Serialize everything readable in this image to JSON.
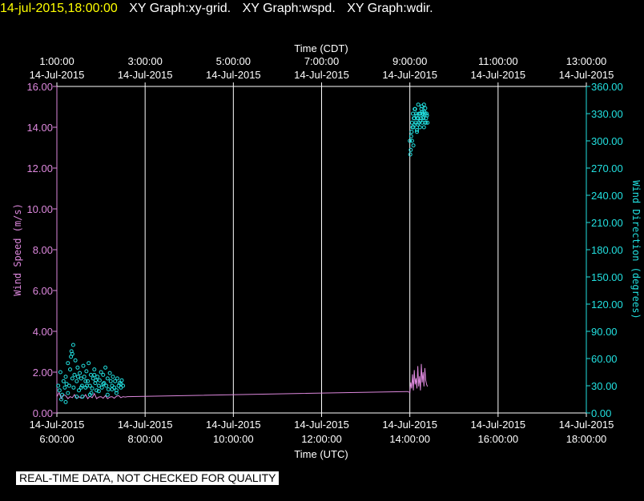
{
  "header": {
    "timestamp": "14-jul-2015,18:00:00",
    "graphs": [
      "XY Graph:xy-grid.",
      "XY Graph:wspd.",
      "XY Graph:wdir."
    ]
  },
  "footer": {
    "notice": "REAL-TIME DATA, NOT CHECKED FOR QUALITY"
  },
  "colors": {
    "wspd": "#dd88dd",
    "wdir": "#22e0e0",
    "grid": "#ffffff",
    "background": "#000000"
  },
  "chart_data": {
    "type": "scatter",
    "x_top_label": "Time (CDT)",
    "x_bottom_label": "Time (UTC)",
    "top_ticks": [
      {
        "time": "1:00:00",
        "date": "14-Jul-2015"
      },
      {
        "time": "3:00:00",
        "date": "14-Jul-2015"
      },
      {
        "time": "5:00:00",
        "date": "14-Jul-2015"
      },
      {
        "time": "7:00:00",
        "date": "14-Jul-2015"
      },
      {
        "time": "9:00:00",
        "date": "14-Jul-2015"
      },
      {
        "time": "11:00:00",
        "date": "14-Jul-2015"
      },
      {
        "time": "13:00:00",
        "date": "14-Jul-2015"
      }
    ],
    "bottom_ticks": [
      {
        "time": "6:00:00",
        "date": "14-Jul-2015"
      },
      {
        "time": "8:00:00",
        "date": "14-Jul-2015"
      },
      {
        "time": "10:00:00",
        "date": "14-Jul-2015"
      },
      {
        "time": "12:00:00",
        "date": "14-Jul-2015"
      },
      {
        "time": "14:00:00",
        "date": "14-Jul-2015"
      },
      {
        "time": "16:00:00",
        "date": "14-Jul-2015"
      },
      {
        "time": "18:00:00",
        "date": "14-Jul-2015"
      }
    ],
    "xlim_utc_hours": [
      6,
      18
    ],
    "left_axis": {
      "label": "Wind Speed (m/s)",
      "ylim": [
        0,
        16
      ],
      "ticks": [
        "0.00",
        "2.00",
        "4.00",
        "6.00",
        "8.00",
        "10.00",
        "12.00",
        "14.00",
        "16.00"
      ]
    },
    "right_axis": {
      "label": "Wind Direction (degrees)",
      "ylim": [
        0,
        360
      ],
      "ticks": [
        "0.00",
        "30.00",
        "60.00",
        "90.00",
        "120.00",
        "150.00",
        "180.00",
        "210.00",
        "240.00",
        "270.00",
        "300.00",
        "330.00",
        "360.00"
      ]
    },
    "grid": true,
    "series": [
      {
        "name": "Wind Speed (m/s)",
        "style": "line",
        "x_utc_hours": [
          6.0,
          6.05,
          6.1,
          6.15,
          6.2,
          6.25,
          6.3,
          6.35,
          6.4,
          6.45,
          6.5,
          6.55,
          6.6,
          6.65,
          6.7,
          6.75,
          6.8,
          6.85,
          6.9,
          6.95,
          7.0,
          7.05,
          7.1,
          7.15,
          7.2,
          7.25,
          7.3,
          7.35,
          7.4,
          7.45,
          7.5,
          7.55,
          7.6,
          13.95,
          14.0,
          14.02,
          14.04,
          14.06,
          14.08,
          14.1,
          14.12,
          14.14,
          14.16,
          14.18,
          14.2,
          14.22,
          14.24,
          14.26,
          14.28,
          14.3,
          14.32,
          14.34,
          14.36,
          14.38,
          14.4
        ],
        "values": [
          0.8,
          1.0,
          0.7,
          0.9,
          0.85,
          0.7,
          0.8,
          0.75,
          0.9,
          0.7,
          0.8,
          0.72,
          0.75,
          0.9,
          0.7,
          0.82,
          0.75,
          0.95,
          0.7,
          0.78,
          0.8,
          0.72,
          0.85,
          0.7,
          0.78,
          0.8,
          0.72,
          0.82,
          0.85,
          0.75,
          0.8,
          0.78,
          0.8,
          1.05,
          1.0,
          1.5,
          1.2,
          1.9,
          1.1,
          2.1,
          1.4,
          1.7,
          1.2,
          2.3,
          1.3,
          1.8,
          1.1,
          2.4,
          1.5,
          2.0,
          1.3,
          2.2,
          1.6,
          1.4,
          1.3
        ]
      },
      {
        "name": "Wind Direction (degrees)",
        "style": "scatter",
        "x_utc_hours": [
          6.03,
          6.06,
          6.08,
          6.12,
          6.15,
          6.18,
          6.2,
          6.22,
          6.25,
          6.28,
          6.3,
          6.32,
          6.35,
          6.37,
          6.4,
          6.42,
          6.45,
          6.47,
          6.5,
          6.52,
          6.55,
          6.57,
          6.6,
          6.62,
          6.65,
          6.67,
          6.7,
          6.72,
          6.75,
          6.77,
          6.8,
          6.82,
          6.85,
          6.87,
          6.9,
          6.92,
          6.95,
          6.97,
          7.0,
          7.02,
          7.05,
          7.07,
          7.1,
          7.12,
          7.15,
          7.17,
          7.2,
          7.22,
          7.25,
          7.27,
          7.3,
          7.32,
          7.35,
          7.37,
          7.4,
          7.42,
          7.45,
          7.47,
          7.5,
          6.1,
          6.25,
          6.35,
          6.45,
          6.55,
          6.65,
          6.75,
          6.85,
          6.95,
          7.05,
          7.15,
          7.25,
          7.35,
          7.45,
          6.2,
          6.33,
          6.38,
          6.48,
          6.58,
          6.68,
          6.78,
          6.88,
          14.0,
          14.02,
          14.04,
          14.05,
          14.07,
          14.08,
          14.1,
          14.11,
          14.13,
          14.14,
          14.16,
          14.17,
          14.19,
          14.2,
          14.22,
          14.23,
          14.25,
          14.26,
          14.28,
          14.29,
          14.31,
          14.32,
          14.34,
          14.35,
          14.37,
          14.38,
          14.4,
          14.03,
          14.06,
          14.09,
          14.12,
          14.15,
          14.18,
          14.21,
          14.24,
          14.27,
          14.3,
          14.33,
          14.36,
          14.39,
          14.08,
          14.16,
          14.24,
          14.32,
          14.01,
          14.05,
          14.11,
          14.19,
          14.28,
          14.35
        ],
        "values": [
          30,
          25,
          45,
          20,
          35,
          28,
          40,
          32,
          55,
          30,
          48,
          62,
          38,
          75,
          42,
          58,
          35,
          50,
          25,
          44,
          38,
          30,
          52,
          40,
          28,
          46,
          35,
          55,
          30,
          42,
          27,
          38,
          48,
          33,
          25,
          40,
          30,
          36,
          45,
          28,
          42,
          33,
          50,
          30,
          38,
          26,
          44,
          35,
          30,
          40,
          28,
          35,
          25,
          38,
          30,
          33,
          28,
          36,
          30,
          15,
          22,
          65,
          18,
          28,
          35,
          20,
          42,
          24,
          32,
          20,
          26,
          22,
          32,
          12,
          68,
          28,
          40,
          18,
          30,
          22,
          36,
          300,
          290,
          310,
          320,
          330,
          315,
          325,
          335,
          320,
          330,
          310,
          325,
          340,
          320,
          330,
          315,
          325,
          335,
          320,
          330,
          325,
          315,
          330,
          320,
          325,
          330,
          320,
          305,
          315,
          325,
          335,
          328,
          318,
          330,
          322,
          338,
          326,
          332,
          320,
          328,
          295,
          312,
          330,
          340,
          285,
          300,
          318,
          325,
          332,
          336
        ]
      }
    ]
  }
}
